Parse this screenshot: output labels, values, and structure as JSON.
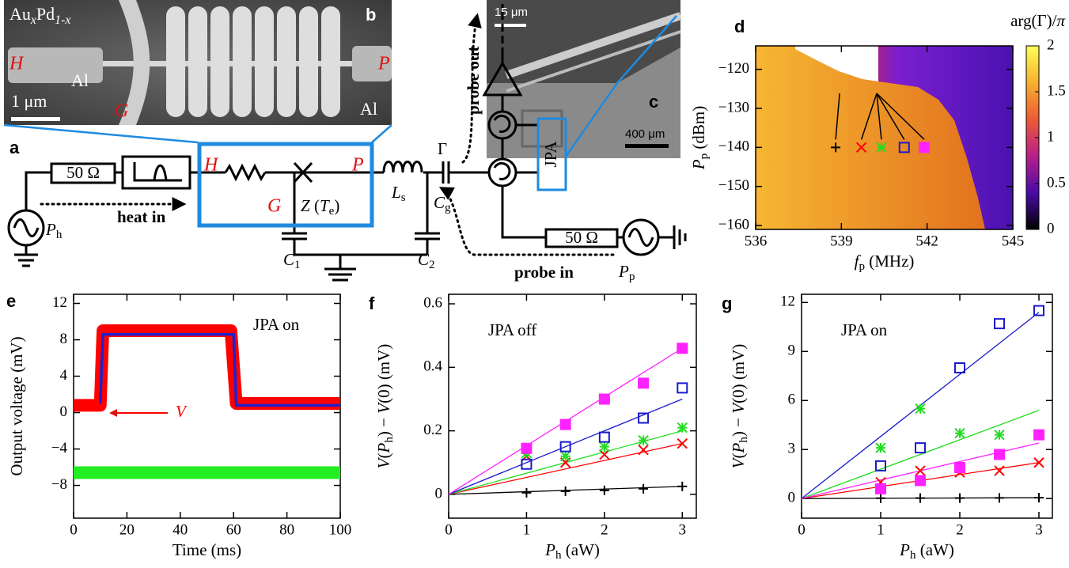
{
  "panel_labels": [
    "a",
    "b",
    "c",
    "d",
    "e",
    "f",
    "g"
  ],
  "micrograph_b": {
    "material": [
      {
        "text": "Au"
      },
      {
        "text": "x",
        "sub": true,
        "italic": true
      },
      {
        "text": "Pd"
      },
      {
        "text": "1-x",
        "sub": true,
        "italic": true
      }
    ],
    "H": "H",
    "P": "P",
    "G": "G",
    "al_left": "Al",
    "al_right": "Al",
    "scale": "1 μm"
  },
  "micrograph_c": {
    "scale_top": "15 μm",
    "scale_bottom": "400 μm"
  },
  "circuit": {
    "r_left": "50 Ω",
    "r_right": "50 Ω",
    "heat_in": "heat in",
    "probe_in": "probe in",
    "probe_out": "probe out",
    "jpa": "JPA",
    "gamma": "Γ",
    "H": "H",
    "P": "P",
    "G": "G",
    "z": [
      {
        "text": "Z",
        "italic": true
      },
      {
        "text": " ("
      },
      {
        "text": "T",
        "italic": true
      },
      {
        "text": "e",
        "sub": true
      },
      {
        "text": ")"
      }
    ],
    "ls": [
      {
        "text": "L",
        "italic": true
      },
      {
        "text": "s",
        "sub": true
      }
    ],
    "cg": [
      {
        "text": "C",
        "italic": true
      },
      {
        "text": "g",
        "sub": true
      }
    ],
    "c1": [
      {
        "text": "C",
        "italic": true
      },
      {
        "text": "1",
        "sub": true
      }
    ],
    "c2": [
      {
        "text": "C",
        "italic": true
      },
      {
        "text": "2",
        "sub": true
      }
    ],
    "ph": [
      {
        "text": "P",
        "italic": true
      },
      {
        "text": "h",
        "sub": true
      }
    ],
    "pp": [
      {
        "text": "P",
        "italic": true
      },
      {
        "text": "p",
        "sub": true
      }
    ]
  },
  "chart_data": [
    {
      "type": "heatmap",
      "xlabel": [
        {
          "text": "f",
          "italic": true
        },
        {
          "text": "p",
          "sub": true
        },
        {
          "text": " (MHz)"
        }
      ],
      "ylabel": [
        {
          "text": "P",
          "italic": true
        },
        {
          "text": "p",
          "sub": true
        },
        {
          "text": " (dBm)"
        }
      ],
      "colorbar_label": [
        {
          "text": "arg(Γ)/"
        },
        {
          "text": "π",
          "italic": true
        }
      ],
      "xlim": [
        536,
        545
      ],
      "xticks": [
        536,
        539,
        542,
        545
      ],
      "ylim": [
        -161,
        -114
      ],
      "yticks": [
        {
          "value": -120,
          "label": "−120"
        },
        {
          "value": -130,
          "label": "−130"
        },
        {
          "value": -140,
          "label": "−140"
        },
        {
          "value": -150,
          "label": "−150"
        },
        {
          "value": -160,
          "label": "−160"
        }
      ],
      "clim": [
        0,
        2
      ],
      "cticks": [
        0,
        0.5,
        1,
        1.5,
        2
      ],
      "colormap": [
        "#000000",
        "#4a0aa8",
        "#b81f8a",
        "#ee5a34",
        "#f8b02e",
        "#ffff55"
      ],
      "series": [
        {
          "marker": "plus",
          "color": "#000000",
          "x": [
            538.8
          ],
          "values": [
            -140
          ]
        },
        {
          "marker": "cross",
          "color": "#ff0000",
          "x": [
            539.7
          ],
          "values": [
            -140
          ]
        },
        {
          "marker": "asterisk",
          "color": "#22dd22",
          "x": [
            540.4
          ],
          "values": [
            -140
          ]
        },
        {
          "marker": "square-open",
          "color": "#1a1acc",
          "x": [
            541.2
          ],
          "values": [
            -140
          ]
        },
        {
          "marker": "square-filled",
          "color": "#ff22ff",
          "x": [
            541.9
          ],
          "values": [
            -140
          ]
        }
      ]
    },
    {
      "type": "line",
      "xlabel": [
        {
          "text": "Time (ms)"
        }
      ],
      "ylabel": [
        {
          "text": "Output voltage (mV)"
        }
      ],
      "xlim": [
        0,
        100
      ],
      "xticks": [
        0,
        20,
        40,
        60,
        80,
        100
      ],
      "ylim": [
        -11.6,
        13
      ],
      "yticks": [
        12,
        8,
        4,
        0,
        {
          "value": -4,
          "label": "−4"
        },
        {
          "value": -8,
          "label": "−8"
        }
      ],
      "annotations": [
        {
          "text": "JPA on"
        },
        {
          "text": "V",
          "italic": true,
          "color": "#ff0000"
        }
      ],
      "series": [
        {
          "color": "#ff0000",
          "noisy": true,
          "x": [
            0,
            10,
            11,
            59,
            61,
            100
          ],
          "values": [
            0.8,
            0.8,
            9,
            9,
            1,
            1
          ]
        },
        {
          "color": "#22ee22",
          "noisy": true,
          "x": [
            0,
            100
          ],
          "values": [
            -6.6,
            -6.6
          ]
        },
        {
          "color": "#2020cc",
          "x": [
            10,
            11,
            60,
            61,
            100
          ],
          "values": [
            1,
            8.6,
            8.6,
            0.8,
            0.8
          ]
        }
      ]
    },
    {
      "type": "scatter",
      "xlabel": [
        {
          "text": "P",
          "italic": true
        },
        {
          "text": "h",
          "sub": true
        },
        {
          "text": " (aW)"
        }
      ],
      "ylabel": [
        {
          "text": "V",
          "italic": true
        },
        {
          "text": "("
        },
        {
          "text": "P",
          "italic": true
        },
        {
          "text": "h",
          "sub": true
        },
        {
          "text": ") − "
        },
        {
          "text": "V",
          "italic": true
        },
        {
          "text": "(0) (mV)"
        }
      ],
      "annotations": [
        {
          "text": "JPA off"
        }
      ],
      "xlim": [
        0,
        3.18
      ],
      "xticks": [
        0,
        1,
        2,
        3
      ],
      "ylim": [
        -0.075,
        0.63
      ],
      "yticks": [
        0,
        0.2,
        0.4,
        0.6
      ],
      "x": [
        1,
        1.5,
        2,
        2.5,
        3
      ],
      "fit_x": [
        0,
        3
      ],
      "series": [
        {
          "marker": "plus",
          "color": "#000000",
          "values": [
            0.005,
            0.01,
            0.0125,
            0.0175,
            0.025
          ],
          "fit_values": [
            0,
            0.025
          ]
        },
        {
          "marker": "cross",
          "color": "#ff0000",
          "values": [
            0.12,
            0.1,
            0.125,
            0.14,
            0.16
          ],
          "fit_values": [
            0,
            0.16
          ]
        },
        {
          "marker": "asterisk",
          "color": "#22dd22",
          "values": [
            0.13,
            0.12,
            0.15,
            0.17,
            0.21
          ],
          "fit_values": [
            0,
            0.2
          ]
        },
        {
          "marker": "square-open",
          "color": "#1a1acc",
          "values": [
            0.095,
            0.15,
            0.18,
            0.24,
            0.335
          ],
          "fit_values": [
            0,
            0.3
          ]
        },
        {
          "marker": "square-filled",
          "color": "#ff22ff",
          "values": [
            0.145,
            0.22,
            0.3,
            0.35,
            0.46
          ],
          "fit_values": [
            0,
            0.46
          ]
        }
      ]
    },
    {
      "type": "scatter",
      "xlabel": [
        {
          "text": "P",
          "italic": true
        },
        {
          "text": "h",
          "sub": true
        },
        {
          "text": " (aW)"
        }
      ],
      "ylabel": [
        {
          "text": "V",
          "italic": true
        },
        {
          "text": "("
        },
        {
          "text": "P",
          "italic": true
        },
        {
          "text": "h",
          "sub": true
        },
        {
          "text": ") − "
        },
        {
          "text": "V",
          "italic": true
        },
        {
          "text": "(0) (mV)"
        }
      ],
      "annotations": [
        {
          "text": "JPA on"
        }
      ],
      "xlim": [
        0,
        3.17
      ],
      "xticks": [
        0,
        1,
        2,
        3
      ],
      "ylim": [
        -1.2,
        12.5
      ],
      "yticks": [
        0,
        3,
        6,
        9,
        12
      ],
      "x": [
        1,
        1.5,
        2,
        2.5,
        3
      ],
      "fit_x": [
        0,
        3
      ],
      "series": [
        {
          "marker": "plus",
          "color": "#000000",
          "values": [
            0.02,
            0.03,
            0.03,
            0.04,
            0.05
          ],
          "fit_values": [
            0,
            0.05
          ]
        },
        {
          "marker": "cross",
          "color": "#ff0000",
          "values": [
            1.0,
            1.7,
            1.6,
            1.7,
            2.2
          ],
          "fit_values": [
            0,
            2.2
          ]
        },
        {
          "marker": "asterisk",
          "color": "#22dd22",
          "values": [
            3.1,
            5.5,
            4.0,
            3.9,
            null
          ],
          "fit_values": [
            0,
            5.4
          ]
        },
        {
          "marker": "square-open",
          "color": "#1a1acc",
          "values": [
            2.0,
            3.1,
            8.0,
            10.7,
            11.5
          ],
          "fit_values": [
            0,
            11.4
          ]
        },
        {
          "marker": "square-filled",
          "color": "#ff22ff",
          "values": [
            0.6,
            1.1,
            1.9,
            2.7,
            3.9
          ],
          "fit_values": [
            0,
            3.4
          ]
        }
      ]
    }
  ]
}
